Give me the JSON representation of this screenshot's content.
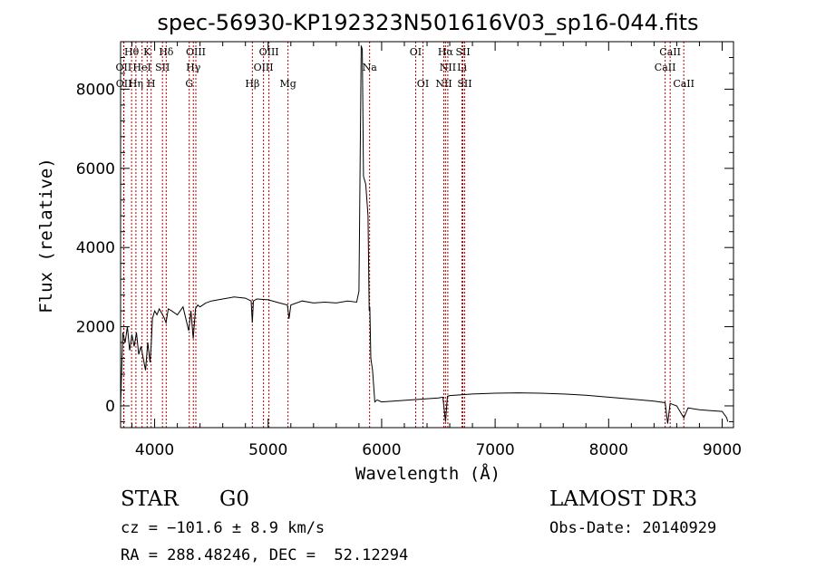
{
  "chart_data": {
    "type": "line",
    "title": "spec-56930-KP192323N501616V03_sp16-044.fits",
    "xlabel": "Wavelength (Å)",
    "ylabel": "Flux (relative)",
    "xlim": [
      3700,
      9100
    ],
    "ylim": [
      -550,
      9200
    ],
    "xticks": [
      4000,
      5000,
      6000,
      7000,
      8000,
      9000
    ],
    "yticks": [
      0,
      2000,
      4000,
      6000,
      8000
    ],
    "series": [
      {
        "name": "spectrum",
        "x": [
          3700,
          3720,
          3740,
          3760,
          3780,
          3800,
          3820,
          3840,
          3860,
          3880,
          3900,
          3920,
          3940,
          3960,
          3970,
          3980,
          4000,
          4020,
          4040,
          4060,
          4080,
          4100,
          4120,
          4150,
          4200,
          4250,
          4300,
          4320,
          4340,
          4360,
          4380,
          4400,
          4450,
          4500,
          4600,
          4700,
          4800,
          4850,
          4861,
          4870,
          4900,
          5000,
          5100,
          5170,
          5184,
          5200,
          5300,
          5400,
          5500,
          5600,
          5700,
          5780,
          5800,
          5820,
          5830,
          5840,
          5860,
          5880,
          5890,
          5896,
          5905,
          5920,
          5940,
          5960,
          6000,
          6100,
          6200,
          6300,
          6400,
          6500,
          6540,
          6563,
          6580,
          6600,
          6700,
          6800,
          7000,
          7200,
          7400,
          7600,
          7800,
          8000,
          8200,
          8400,
          8498,
          8520,
          8542,
          8560,
          8600,
          8662,
          8700,
          8800,
          8900,
          9000,
          9040,
          9050
        ],
        "y": [
          0,
          1850,
          1600,
          2000,
          1400,
          1800,
          1500,
          1850,
          1300,
          1500,
          1200,
          900,
          1600,
          1100,
          1550,
          2200,
          2400,
          2300,
          2450,
          2350,
          2250,
          2100,
          2450,
          2400,
          2300,
          2500,
          1900,
          2400,
          1700,
          2450,
          2550,
          2500,
          2600,
          2650,
          2700,
          2750,
          2720,
          2650,
          2100,
          2650,
          2700,
          2680,
          2600,
          2550,
          2200,
          2550,
          2650,
          2600,
          2620,
          2600,
          2650,
          2620,
          2900,
          9100,
          9000,
          5800,
          5600,
          4800,
          2400,
          2500,
          1200,
          900,
          100,
          150,
          100,
          120,
          140,
          160,
          180,
          200,
          220,
          -400,
          240,
          260,
          280,
          300,
          320,
          330,
          320,
          300,
          270,
          220,
          170,
          120,
          80,
          -450,
          60,
          40,
          0,
          -300,
          -50,
          -100,
          -120,
          -140,
          -300,
          -400
        ]
      }
    ],
    "lines": [
      {
        "name": "Hθ",
        "x": 3797,
        "row": 0
      },
      {
        "name": "K",
        "x": 3934,
        "row": 0
      },
      {
        "name": "Hδ",
        "x": 4102,
        "row": 0
      },
      {
        "name": "OII",
        "x": 3727,
        "row": 1
      },
      {
        "name": "HeI",
        "x": 3889,
        "row": 1
      },
      {
        "name": "SII",
        "x": 4069,
        "row": 1
      },
      {
        "name": "OII",
        "x": 3729,
        "row": 2
      },
      {
        "name": "Hη",
        "x": 3835,
        "row": 2
      },
      {
        "name": "H",
        "x": 3969,
        "row": 2
      },
      {
        "name": "OIII",
        "x": 4363,
        "row": 0
      },
      {
        "name": "Hγ",
        "x": 4341,
        "row": 1
      },
      {
        "name": "G",
        "x": 4305,
        "row": 2
      },
      {
        "name": "OIII",
        "x": 5007,
        "row": 0
      },
      {
        "name": "OIII",
        "x": 4959,
        "row": 1
      },
      {
        "name": "Hβ",
        "x": 4861,
        "row": 2
      },
      {
        "name": "Mg",
        "x": 5175,
        "row": 2
      },
      {
        "name": "Na",
        "x": 5894,
        "row": 1
      },
      {
        "name": "OI",
        "x": 6300,
        "row": 0
      },
      {
        "name": "OI",
        "x": 6364,
        "row": 2
      },
      {
        "name": "Hα",
        "x": 6563,
        "row": 0
      },
      {
        "name": "NII",
        "x": 6583,
        "row": 1
      },
      {
        "name": "Li",
        "x": 6708,
        "row": 1
      },
      {
        "name": "NII",
        "x": 6548,
        "row": 2
      },
      {
        "name": "SII",
        "x": 6716,
        "row": 0
      },
      {
        "name": "SII",
        "x": 6731,
        "row": 2
      },
      {
        "name": "CaII",
        "x": 8542,
        "row": 0
      },
      {
        "name": "CaII",
        "x": 8498,
        "row": 1
      },
      {
        "name": "CaII",
        "x": 8662,
        "row": 2
      }
    ]
  },
  "footer": {
    "class_label": "STAR",
    "subclass": "G0",
    "survey": "LAMOST DR3",
    "cz": "cz = −101.6 ± 8.9 km/s",
    "obs_date": "Obs-Date: 20140929",
    "coords": "RA = 288.48246, DEC =  52.12294"
  },
  "colors": {
    "axis": "#000000",
    "line_markers": "#b00000",
    "spectrum": "#000000"
  }
}
